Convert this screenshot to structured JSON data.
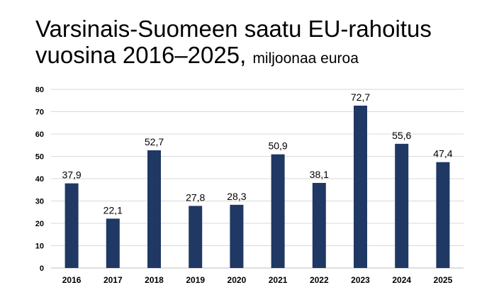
{
  "title": {
    "line1": "Varsinais-Suomeen saatu EU-rahoitus",
    "line2": "vuosina 2016–2025,",
    "unit": "miljoonaa euroa"
  },
  "chart_data": {
    "type": "bar",
    "categories": [
      "2016",
      "2017",
      "2018",
      "2019",
      "2020",
      "2021",
      "2022",
      "2023",
      "2024",
      "2025"
    ],
    "values": [
      37.9,
      22.1,
      52.7,
      27.8,
      28.3,
      50.9,
      38.1,
      72.7,
      55.6,
      47.4
    ],
    "data_labels": [
      "37,9",
      "22,1",
      "52,7",
      "27,8",
      "28,3",
      "50,9",
      "38,1",
      "72,7",
      "55,6",
      "47,4"
    ],
    "yticks": [
      0,
      10,
      20,
      30,
      40,
      50,
      60,
      70,
      80
    ],
    "ylim": [
      0,
      80
    ],
    "xlabel": "",
    "ylabel": "",
    "grid": true,
    "legend": "none",
    "bar_color": "#1f3864",
    "grid_color": "#d9d9d9"
  }
}
